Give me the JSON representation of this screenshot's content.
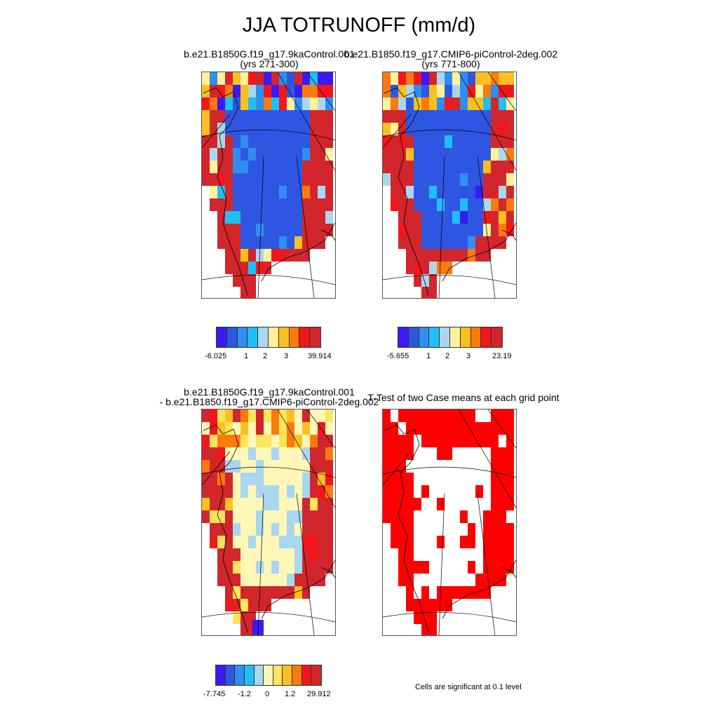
{
  "title": "JJA TOTRUNOFF (mm/d)",
  "panels": {
    "case1": {
      "line1": "b.e21.B1850G.f19_g17.9kaControl.001",
      "line2": "(yrs 271-300)"
    },
    "case2": {
      "line1": "b.e21.B1850.f19_g17.CMIP6-piControl-2deg.002",
      "line2": "(yrs 771-800)"
    },
    "diff": {
      "line1": "b.e21.B1850G.f19_g17.9kaControl.001",
      "line2": "- b.e21.B1850.f19_g17.CMIP6-piControl-2deg.002"
    },
    "ttest": {
      "line1": "T-Test of two Case means at each grid point"
    }
  },
  "colorbars": {
    "case1": {
      "colors": [
        "#3a1af5",
        "#2c58e0",
        "#2f8ef0",
        "#1fbff5",
        "#a9d7ef",
        "#fff29a",
        "#fbc01f",
        "#fb7a0e",
        "#f2161b",
        "#d1262c"
      ],
      "labels": [
        "-6.025",
        "1",
        "2",
        "3",
        "39.914"
      ]
    },
    "case2": {
      "colors": [
        "#3a1af5",
        "#2c58e0",
        "#2f8ef0",
        "#1fbff5",
        "#a9d7ef",
        "#fff29a",
        "#fbc01f",
        "#fb7a0e",
        "#f2161b",
        "#d1262c"
      ],
      "labels": [
        "-5.655",
        "1",
        "2",
        "3",
        "23.19"
      ]
    },
    "diff": {
      "colors": [
        "#3a1af5",
        "#2c58e0",
        "#2f8ef0",
        "#1fbff5",
        "#a9d7ef",
        "#fff7b8",
        "#fde45a",
        "#fbc01f",
        "#fb7a0e",
        "#f2161b",
        "#d1262c"
      ],
      "labels": [
        "-7.745",
        "-1.2",
        "0",
        "1.2",
        "29.912"
      ]
    }
  },
  "note": "Cells are significant at 0.1 level",
  "map_colors": {
    "red": "#d1262c",
    "blue": "#2f56e2",
    "sig": "#ff0000"
  }
}
